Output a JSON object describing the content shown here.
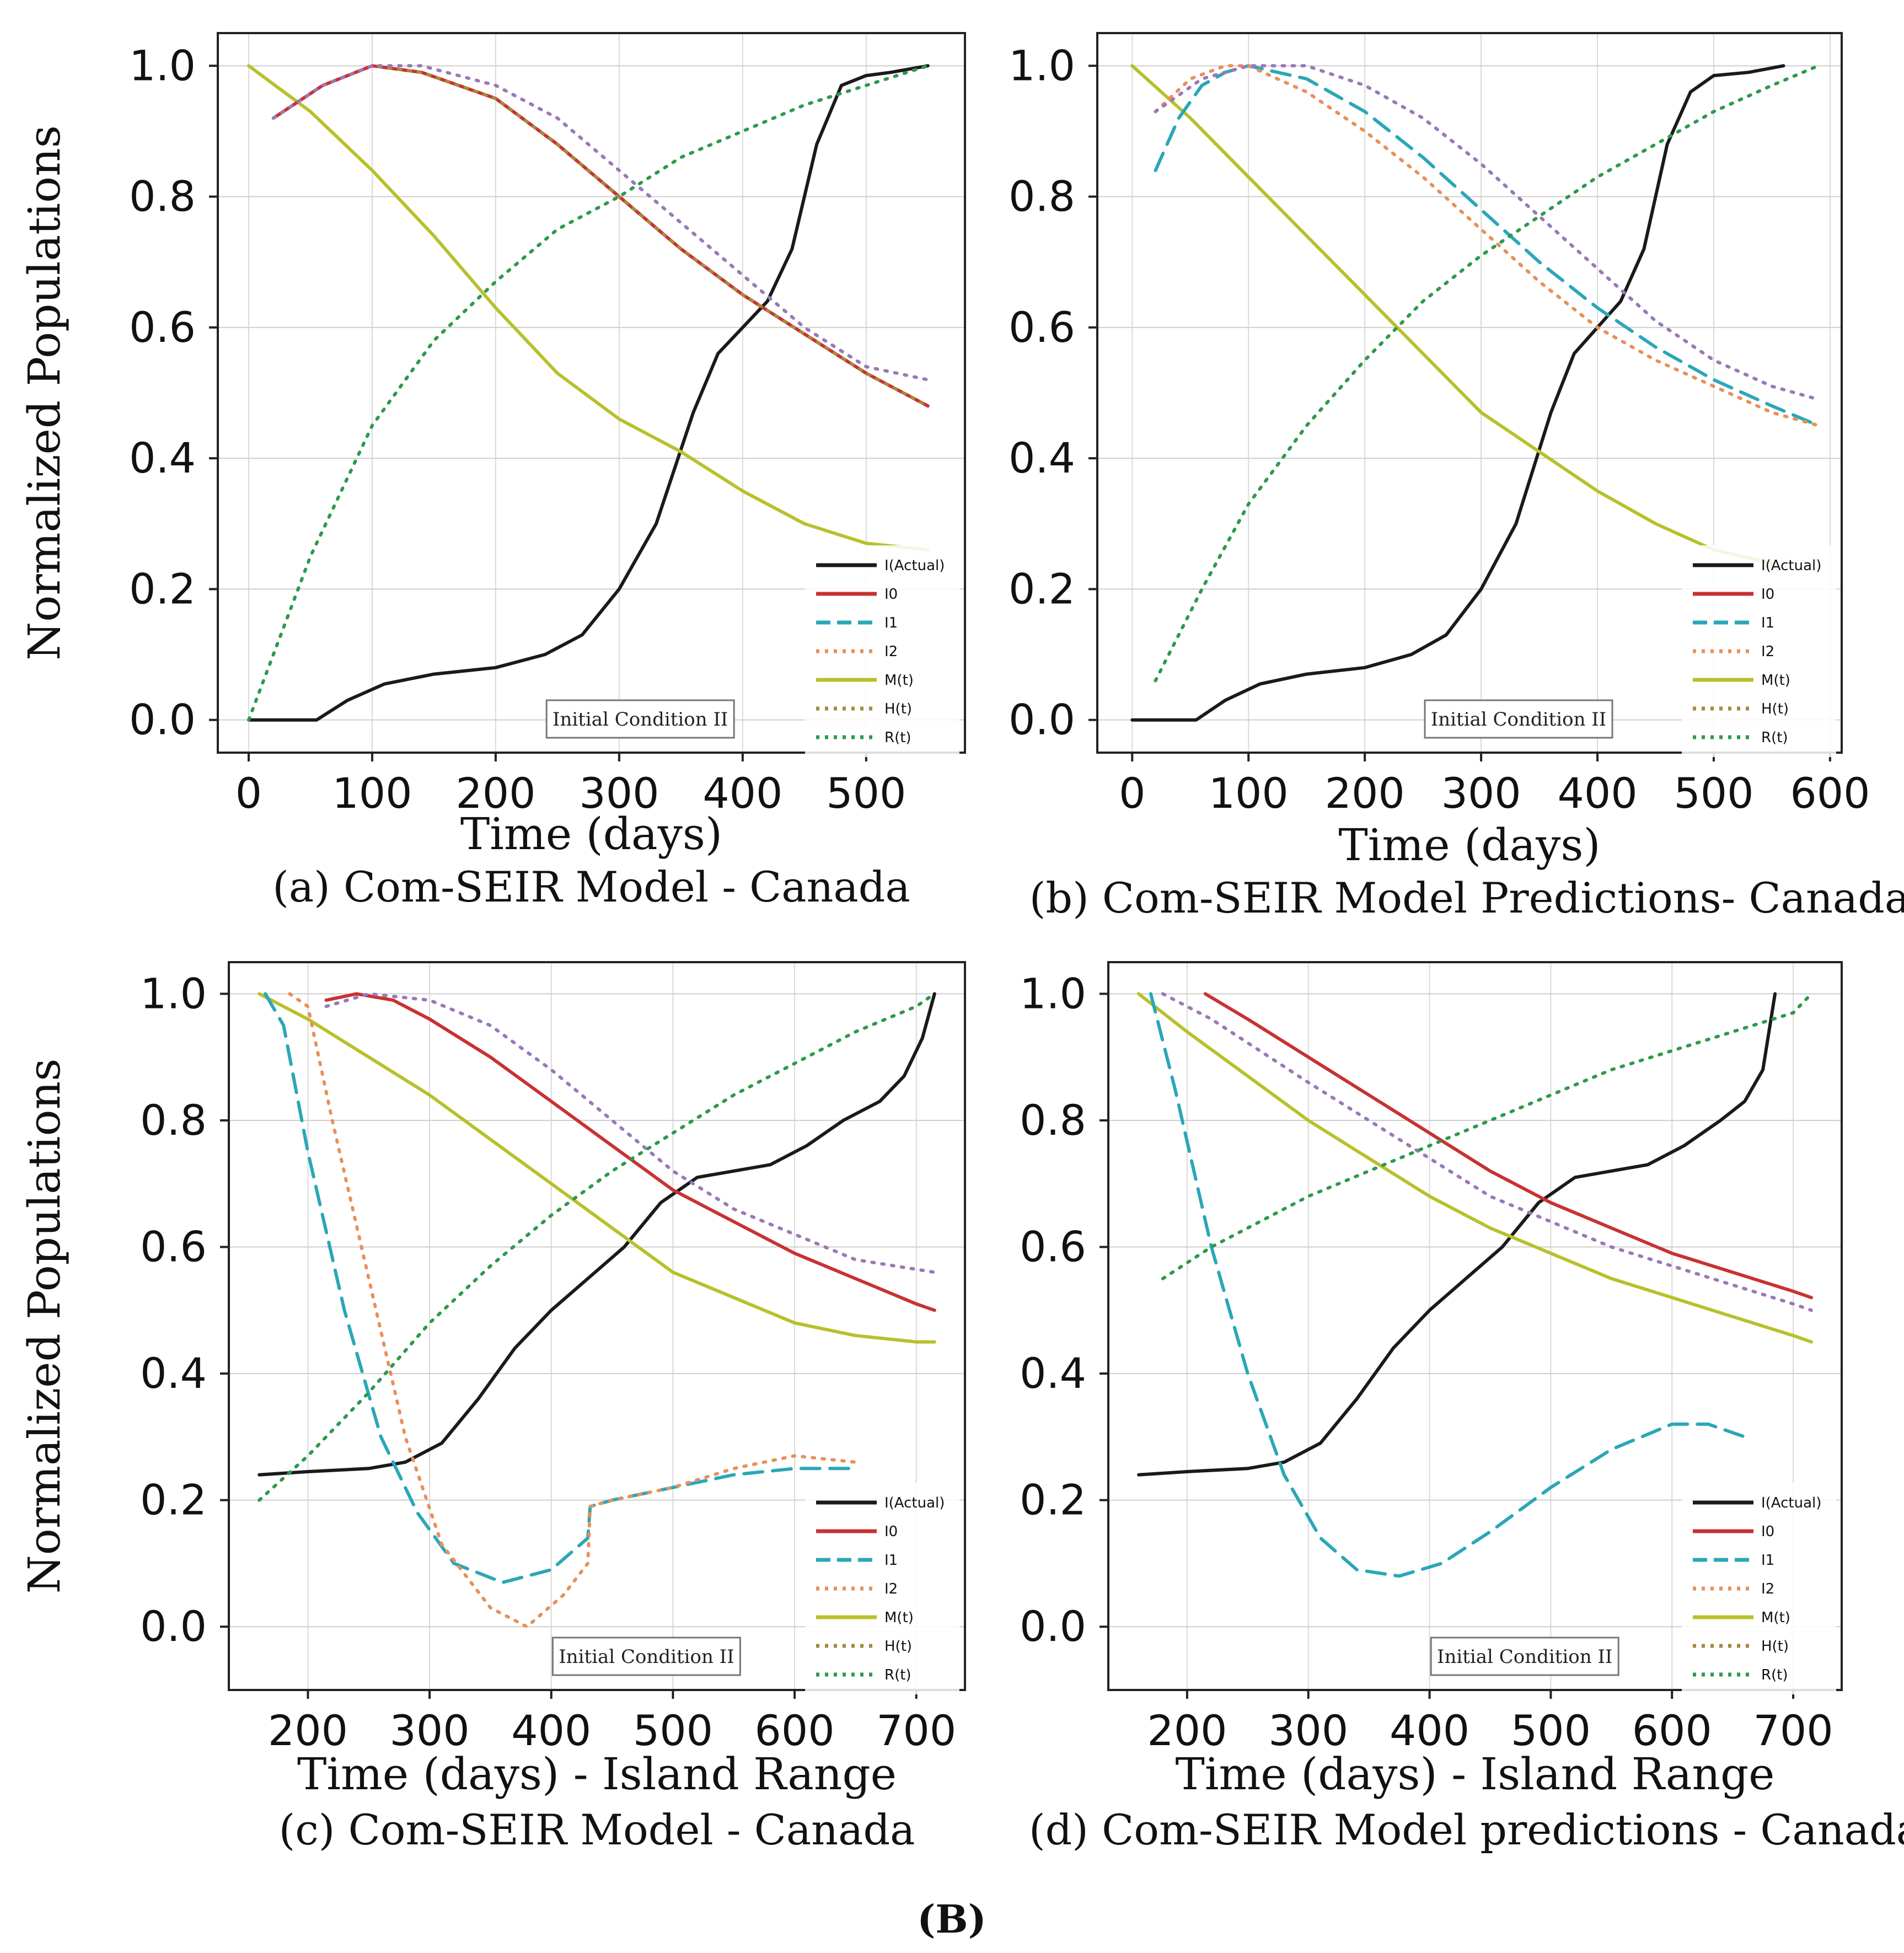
{
  "figure": {
    "label": "(B)"
  },
  "series_style": {
    "I(Actual)": {
      "color": "#1a1a1a",
      "dash": "solid"
    },
    "I0": {
      "color": "#c83232",
      "dash": "solid"
    },
    "I1": {
      "color": "#2aa7b8",
      "dash": "dashed"
    },
    "I2": {
      "color": "#e8905a",
      "dash": "dotted"
    },
    "M(t)": {
      "color": "#b8c02c",
      "dash": "solid"
    },
    "H(t)": {
      "color": "#a68a3a",
      "dash": "dotted"
    },
    "R(t)": {
      "color": "#2e9a4a",
      "dash": "dotted"
    },
    "I_h": {
      "color": "#9a78b8",
      "dash": "dotted"
    }
  },
  "chart_data": [
    {
      "id": "a",
      "type": "line",
      "caption": "(a) Com-SEIR Model - Canada",
      "xlabel": "Time (days)",
      "ylabel": "Normalized Populations",
      "xlim": [
        -25,
        580
      ],
      "ylim": [
        -0.05,
        1.05
      ],
      "xticks": [
        0,
        100,
        200,
        300,
        400,
        500
      ],
      "xtick_labels": [
        "0",
        "100",
        "200",
        "300",
        "400",
        "500"
      ],
      "yticks": [
        0.0,
        0.2,
        0.4,
        0.6,
        0.8,
        1.0
      ],
      "ytick_labels": [
        "0.0",
        "0.2",
        "0.4",
        "0.6",
        "0.8",
        "1.0"
      ],
      "annotation": "Initial Condition II",
      "legend": [
        "I(Actual)",
        "I0",
        "I1",
        "I2",
        "M(t)",
        "H(t)",
        "R(t)"
      ],
      "series": [
        {
          "name": "I(Actual)",
          "x": [
            0,
            30,
            55,
            80,
            110,
            150,
            200,
            240,
            270,
            300,
            330,
            360,
            380,
            400,
            420,
            440,
            460,
            480,
            500,
            520,
            550
          ],
          "y": [
            0.0,
            0.0,
            0.0,
            0.03,
            0.055,
            0.07,
            0.08,
            0.1,
            0.13,
            0.2,
            0.3,
            0.47,
            0.56,
            0.6,
            0.64,
            0.72,
            0.88,
            0.97,
            0.985,
            0.99,
            1.0
          ]
        },
        {
          "name": "M(t)",
          "x": [
            0,
            50,
            100,
            150,
            200,
            250,
            300,
            350,
            400,
            450,
            500,
            550
          ],
          "y": [
            1.0,
            0.93,
            0.84,
            0.74,
            0.63,
            0.53,
            0.46,
            0.41,
            0.35,
            0.3,
            0.27,
            0.26
          ]
        },
        {
          "name": "I0",
          "x": [
            20,
            60,
            100,
            140,
            200,
            250,
            300,
            350,
            400,
            450,
            500,
            550
          ],
          "y": [
            0.92,
            0.97,
            1.0,
            0.99,
            0.95,
            0.88,
            0.8,
            0.72,
            0.65,
            0.59,
            0.53,
            0.48
          ]
        },
        {
          "name": "H(t)",
          "x": [
            20,
            60,
            100,
            140,
            200,
            250,
            300,
            350,
            400,
            450,
            500,
            550
          ],
          "y": [
            0.92,
            0.97,
            1.0,
            0.99,
            0.95,
            0.88,
            0.8,
            0.72,
            0.65,
            0.59,
            0.53,
            0.48
          ]
        },
        {
          "name": "I_h",
          "x": [
            20,
            60,
            100,
            140,
            200,
            250,
            300,
            350,
            400,
            450,
            500,
            550
          ],
          "y": [
            0.92,
            0.97,
            1.0,
            1.0,
            0.97,
            0.92,
            0.84,
            0.76,
            0.68,
            0.6,
            0.54,
            0.52
          ]
        },
        {
          "name": "R(t)",
          "x": [
            0,
            50,
            100,
            150,
            200,
            250,
            300,
            350,
            400,
            450,
            500,
            550
          ],
          "y": [
            0.0,
            0.25,
            0.45,
            0.58,
            0.67,
            0.75,
            0.8,
            0.86,
            0.9,
            0.94,
            0.97,
            1.0
          ]
        }
      ]
    },
    {
      "id": "b",
      "type": "line",
      "caption": "(b) Com-SEIR Model Predictions- Canada",
      "xlabel": "Time (days)",
      "ylabel": "",
      "xlim": [
        -30,
        610
      ],
      "ylim": [
        -0.05,
        1.05
      ],
      "xticks": [
        0,
        100,
        200,
        300,
        400,
        500,
        600
      ],
      "xtick_labels": [
        "0",
        "100",
        "200",
        "300",
        "400",
        "500",
        "600"
      ],
      "yticks": [
        0.0,
        0.2,
        0.4,
        0.6,
        0.8,
        1.0
      ],
      "ytick_labels": [
        "0.0",
        "0.2",
        "0.4",
        "0.6",
        "0.8",
        "1.0"
      ],
      "annotation": "Initial Condition II",
      "legend": [
        "I(Actual)",
        "I0",
        "I1",
        "I2",
        "M(t)",
        "H(t)",
        "R(t)"
      ],
      "series": [
        {
          "name": "I(Actual)",
          "x": [
            0,
            30,
            55,
            80,
            110,
            150,
            200,
            240,
            270,
            300,
            330,
            360,
            380,
            400,
            420,
            440,
            460,
            480,
            500,
            530,
            560
          ],
          "y": [
            0.0,
            0.0,
            0.0,
            0.03,
            0.055,
            0.07,
            0.08,
            0.1,
            0.13,
            0.2,
            0.3,
            0.47,
            0.56,
            0.6,
            0.64,
            0.72,
            0.88,
            0.96,
            0.985,
            0.99,
            1.0
          ]
        },
        {
          "name": "M(t)",
          "x": [
            0,
            50,
            100,
            150,
            200,
            250,
            300,
            350,
            400,
            450,
            500,
            550
          ],
          "y": [
            1.0,
            0.92,
            0.83,
            0.74,
            0.65,
            0.56,
            0.47,
            0.41,
            0.35,
            0.3,
            0.26,
            0.24
          ]
        },
        {
          "name": "I1",
          "x": [
            20,
            40,
            60,
            80,
            100,
            150,
            200,
            250,
            300,
            350,
            400,
            450,
            500,
            550,
            590
          ],
          "y": [
            0.84,
            0.92,
            0.97,
            0.99,
            1.0,
            0.98,
            0.93,
            0.86,
            0.78,
            0.7,
            0.63,
            0.57,
            0.52,
            0.48,
            0.45
          ]
        },
        {
          "name": "I2",
          "x": [
            20,
            50,
            80,
            100,
            150,
            200,
            250,
            300,
            350,
            400,
            450,
            500,
            550,
            590
          ],
          "y": [
            0.93,
            0.98,
            1.0,
            1.0,
            0.96,
            0.9,
            0.83,
            0.75,
            0.67,
            0.6,
            0.55,
            0.51,
            0.47,
            0.45
          ]
        },
        {
          "name": "I_h",
          "x": [
            20,
            60,
            100,
            150,
            200,
            250,
            300,
            350,
            400,
            450,
            500,
            550,
            590
          ],
          "y": [
            0.93,
            0.98,
            1.0,
            1.0,
            0.97,
            0.92,
            0.85,
            0.77,
            0.69,
            0.61,
            0.55,
            0.51,
            0.49
          ]
        },
        {
          "name": "R(t)",
          "x": [
            20,
            60,
            100,
            150,
            200,
            250,
            300,
            350,
            400,
            450,
            500,
            550,
            590
          ],
          "y": [
            0.06,
            0.2,
            0.33,
            0.45,
            0.55,
            0.64,
            0.71,
            0.77,
            0.83,
            0.88,
            0.93,
            0.97,
            1.0
          ]
        }
      ]
    },
    {
      "id": "c",
      "type": "line",
      "caption": "(c) Com-SEIR Model - Canada",
      "xlabel": "Time (days) - Island Range",
      "ylabel": "Normalized Populations",
      "xlim": [
        135,
        740
      ],
      "ylim": [
        -0.1,
        1.05
      ],
      "xticks": [
        200,
        300,
        400,
        500,
        600,
        700
      ],
      "xtick_labels": [
        "200",
        "300",
        "400",
        "500",
        "600",
        "700"
      ],
      "yticks": [
        0.0,
        0.2,
        0.4,
        0.6,
        0.8,
        1.0
      ],
      "ytick_labels": [
        "0.0",
        "0.2",
        "0.4",
        "0.6",
        "0.8",
        "1.0"
      ],
      "annotation": "Initial Condition II",
      "legend": [
        "I(Actual)",
        "I0",
        "I1",
        "I2",
        "M(t)",
        "H(t)",
        "R(t)"
      ],
      "series": [
        {
          "name": "I(Actual)",
          "x": [
            160,
            200,
            250,
            280,
            310,
            340,
            370,
            400,
            430,
            460,
            490,
            520,
            550,
            580,
            610,
            640,
            670,
            690,
            705,
            715
          ],
          "y": [
            0.24,
            0.245,
            0.25,
            0.26,
            0.29,
            0.36,
            0.44,
            0.5,
            0.55,
            0.6,
            0.67,
            0.71,
            0.72,
            0.73,
            0.76,
            0.8,
            0.83,
            0.87,
            0.93,
            1.0
          ]
        },
        {
          "name": "M(t)",
          "x": [
            160,
            200,
            250,
            300,
            350,
            400,
            450,
            500,
            550,
            600,
            650,
            700,
            715
          ],
          "y": [
            1.0,
            0.96,
            0.9,
            0.84,
            0.77,
            0.7,
            0.63,
            0.56,
            0.52,
            0.48,
            0.46,
            0.45,
            0.45
          ]
        },
        {
          "name": "I0",
          "x": [
            215,
            240,
            270,
            300,
            350,
            400,
            450,
            500,
            550,
            600,
            650,
            700,
            715
          ],
          "y": [
            0.99,
            1.0,
            0.99,
            0.96,
            0.9,
            0.83,
            0.76,
            0.69,
            0.64,
            0.59,
            0.55,
            0.51,
            0.5
          ]
        },
        {
          "name": "I_h",
          "x": [
            215,
            250,
            300,
            350,
            400,
            450,
            500,
            550,
            600,
            650,
            715
          ],
          "y": [
            0.98,
            1.0,
            0.99,
            0.95,
            0.88,
            0.8,
            0.72,
            0.66,
            0.62,
            0.58,
            0.56
          ]
        },
        {
          "name": "I1",
          "x": [
            165,
            180,
            200,
            230,
            260,
            290,
            320,
            360,
            400,
            430,
            432,
            450,
            500,
            550,
            600,
            650
          ],
          "y": [
            1.0,
            0.95,
            0.75,
            0.5,
            0.3,
            0.18,
            0.1,
            0.07,
            0.09,
            0.14,
            0.19,
            0.2,
            0.22,
            0.24,
            0.25,
            0.25
          ]
        },
        {
          "name": "I2",
          "x": [
            185,
            200,
            220,
            250,
            280,
            310,
            350,
            380,
            410,
            430,
            432,
            450,
            500,
            550,
            600,
            650
          ],
          "y": [
            1.0,
            0.98,
            0.8,
            0.55,
            0.3,
            0.13,
            0.03,
            0.0,
            0.05,
            0.1,
            0.19,
            0.2,
            0.22,
            0.25,
            0.27,
            0.26
          ]
        },
        {
          "name": "R(t)",
          "x": [
            160,
            200,
            250,
            300,
            350,
            400,
            450,
            500,
            550,
            600,
            650,
            700,
            715
          ],
          "y": [
            0.2,
            0.27,
            0.37,
            0.48,
            0.57,
            0.65,
            0.72,
            0.78,
            0.84,
            0.89,
            0.94,
            0.98,
            1.0
          ]
        }
      ]
    },
    {
      "id": "d",
      "type": "line",
      "caption": "(d) Com-SEIR Model predictions - Canada",
      "xlabel": "Time (days) - Island Range",
      "ylabel": "",
      "xlim": [
        135,
        740
      ],
      "ylim": [
        -0.1,
        1.05
      ],
      "xticks": [
        200,
        300,
        400,
        500,
        600,
        700
      ],
      "xtick_labels": [
        "200",
        "300",
        "400",
        "500",
        "600",
        "700"
      ],
      "yticks": [
        0.0,
        0.2,
        0.4,
        0.6,
        0.8,
        1.0
      ],
      "ytick_labels": [
        "0.0",
        "0.2",
        "0.4",
        "0.6",
        "0.8",
        "1.0"
      ],
      "annotation": "Initial Condition II",
      "legend": [
        "I(Actual)",
        "I0",
        "I1",
        "I2",
        "M(t)",
        "H(t)",
        "R(t)"
      ],
      "series": [
        {
          "name": "I(Actual)",
          "x": [
            160,
            200,
            250,
            280,
            310,
            340,
            370,
            400,
            430,
            460,
            490,
            520,
            550,
            580,
            610,
            640,
            660,
            675,
            685
          ],
          "y": [
            0.24,
            0.245,
            0.25,
            0.26,
            0.29,
            0.36,
            0.44,
            0.5,
            0.55,
            0.6,
            0.67,
            0.71,
            0.72,
            0.73,
            0.76,
            0.8,
            0.83,
            0.88,
            1.0
          ]
        },
        {
          "name": "M(t)",
          "x": [
            160,
            200,
            250,
            300,
            350,
            400,
            450,
            500,
            550,
            600,
            650,
            700,
            715
          ],
          "y": [
            1.0,
            0.94,
            0.87,
            0.8,
            0.74,
            0.68,
            0.63,
            0.59,
            0.55,
            0.52,
            0.49,
            0.46,
            0.45
          ]
        },
        {
          "name": "I0",
          "x": [
            215,
            250,
            300,
            350,
            400,
            450,
            500,
            550,
            600,
            650,
            700,
            715
          ],
          "y": [
            1.0,
            0.96,
            0.9,
            0.84,
            0.78,
            0.72,
            0.67,
            0.63,
            0.59,
            0.56,
            0.53,
            0.52
          ]
        },
        {
          "name": "I_h",
          "x": [
            180,
            220,
            260,
            300,
            350,
            400,
            450,
            500,
            550,
            600,
            650,
            700,
            715
          ],
          "y": [
            1.0,
            0.96,
            0.91,
            0.86,
            0.8,
            0.74,
            0.68,
            0.64,
            0.6,
            0.57,
            0.54,
            0.51,
            0.5
          ]
        },
        {
          "name": "I1",
          "x": [
            170,
            190,
            220,
            250,
            280,
            310,
            340,
            375,
            410,
            450,
            500,
            550,
            600,
            630,
            660
          ],
          "y": [
            1.0,
            0.85,
            0.6,
            0.4,
            0.24,
            0.14,
            0.09,
            0.08,
            0.1,
            0.15,
            0.22,
            0.28,
            0.32,
            0.32,
            0.3
          ]
        },
        {
          "name": "R(t)",
          "x": [
            180,
            220,
            260,
            300,
            350,
            400,
            450,
            500,
            550,
            600,
            650,
            700,
            715
          ],
          "y": [
            0.55,
            0.6,
            0.64,
            0.68,
            0.72,
            0.76,
            0.8,
            0.84,
            0.88,
            0.91,
            0.94,
            0.97,
            1.0
          ]
        }
      ]
    }
  ]
}
